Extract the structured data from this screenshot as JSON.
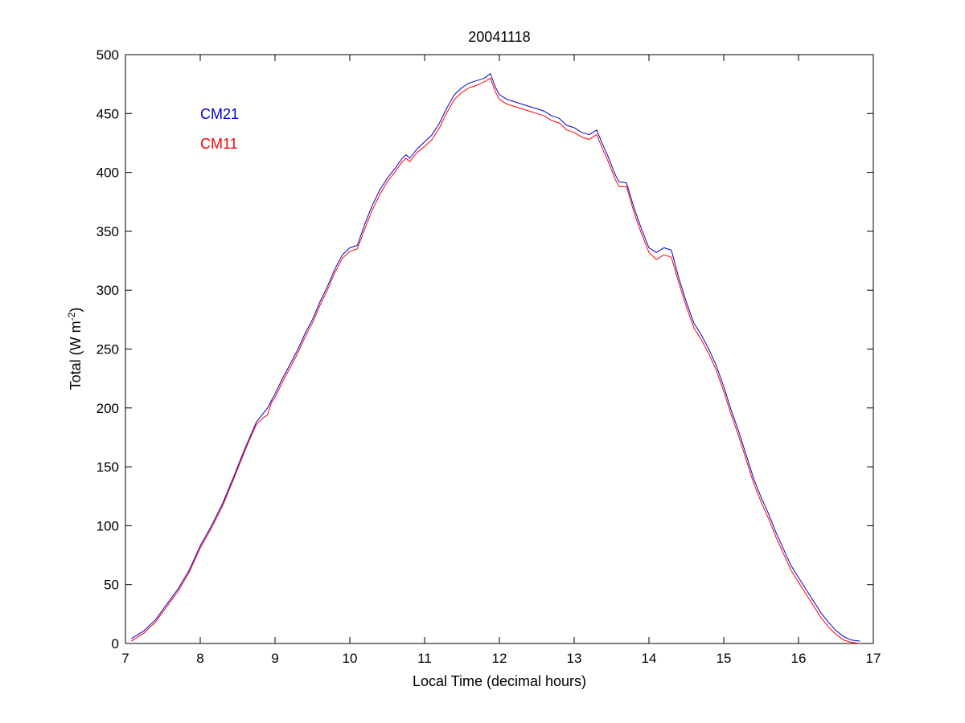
{
  "chart_data": {
    "type": "line",
    "title": "20041118",
    "xlabel": "Local Time (decimal hours)",
    "ylabel": {
      "main": "Total (W m",
      "sup": "-2",
      "close": ")"
    },
    "xlim": [
      7,
      17
    ],
    "ylim": [
      0,
      500
    ],
    "xticks": [
      7,
      8,
      9,
      10,
      11,
      12,
      13,
      14,
      15,
      16,
      17
    ],
    "yticks": [
      0,
      50,
      100,
      150,
      200,
      250,
      300,
      350,
      400,
      450,
      500
    ],
    "grid": false,
    "legend_position": "top-left",
    "series": [
      {
        "name": "CM21",
        "color": "#0000cc",
        "x": [
          7.08,
          7.25,
          7.4,
          7.55,
          7.7,
          7.85,
          8.0,
          8.15,
          8.3,
          8.45,
          8.6,
          8.75,
          8.85,
          8.9,
          8.95,
          9.0,
          9.1,
          9.2,
          9.3,
          9.4,
          9.5,
          9.6,
          9.7,
          9.8,
          9.9,
          10.0,
          10.1,
          10.2,
          10.3,
          10.4,
          10.5,
          10.6,
          10.7,
          10.75,
          10.8,
          10.9,
          11.0,
          11.1,
          11.2,
          11.3,
          11.4,
          11.5,
          11.6,
          11.7,
          11.8,
          11.88,
          11.95,
          12.0,
          12.1,
          12.2,
          12.3,
          12.4,
          12.5,
          12.6,
          12.7,
          12.8,
          12.9,
          13.0,
          13.1,
          13.2,
          13.3,
          13.38,
          13.45,
          13.55,
          13.6,
          13.7,
          13.8,
          13.9,
          14.0,
          14.1,
          14.2,
          14.3,
          14.4,
          14.5,
          14.6,
          14.7,
          14.8,
          14.9,
          15.0,
          15.1,
          15.2,
          15.3,
          15.4,
          15.5,
          15.6,
          15.7,
          15.8,
          15.9,
          16.0,
          16.1,
          16.2,
          16.3,
          16.4,
          16.5,
          16.6,
          16.7,
          16.82
        ],
        "y": [
          4,
          11,
          20,
          33,
          46,
          62,
          83,
          100,
          119,
          142,
          166,
          188,
          196,
          200,
          206,
          212,
          225,
          237,
          249,
          263,
          275,
          290,
          303,
          318,
          330,
          336,
          338,
          356,
          372,
          385,
          395,
          403,
          412,
          415,
          412,
          420,
          426,
          432,
          442,
          455,
          466,
          472,
          476,
          478,
          480,
          484,
          472,
          466,
          462,
          460,
          458,
          456,
          454,
          452,
          448,
          446,
          440,
          438,
          434,
          432,
          436,
          424,
          414,
          398,
          392,
          391,
          370,
          352,
          336,
          332,
          336,
          334,
          310,
          290,
          272,
          262,
          250,
          236,
          218,
          198,
          180,
          160,
          140,
          124,
          110,
          94,
          80,
          66,
          56,
          46,
          36,
          26,
          18,
          11,
          6,
          3,
          2
        ]
      },
      {
        "name": "CM11",
        "color": "#ff0000",
        "x": [
          7.08,
          7.25,
          7.4,
          7.55,
          7.7,
          7.85,
          8.0,
          8.15,
          8.3,
          8.45,
          8.6,
          8.75,
          8.85,
          8.9,
          8.95,
          9.0,
          9.1,
          9.2,
          9.3,
          9.4,
          9.5,
          9.6,
          9.7,
          9.8,
          9.9,
          10.0,
          10.1,
          10.2,
          10.3,
          10.4,
          10.5,
          10.6,
          10.7,
          10.75,
          10.8,
          10.9,
          11.0,
          11.1,
          11.2,
          11.3,
          11.4,
          11.5,
          11.6,
          11.7,
          11.8,
          11.88,
          11.95,
          12.0,
          12.1,
          12.2,
          12.3,
          12.4,
          12.5,
          12.6,
          12.7,
          12.8,
          12.9,
          13.0,
          13.1,
          13.2,
          13.3,
          13.38,
          13.45,
          13.55,
          13.6,
          13.7,
          13.8,
          13.9,
          14.0,
          14.1,
          14.2,
          14.3,
          14.4,
          14.5,
          14.6,
          14.7,
          14.8,
          14.9,
          15.0,
          15.1,
          15.2,
          15.3,
          15.4,
          15.5,
          15.6,
          15.7,
          15.8,
          15.9,
          16.0,
          16.1,
          16.2,
          16.3,
          16.4,
          16.5,
          16.6,
          16.7,
          16.82
        ],
        "y": [
          2,
          9,
          18,
          31,
          44,
          60,
          81,
          98,
          117,
          140,
          164,
          186,
          192,
          194,
          204,
          209,
          222,
          234,
          246,
          260,
          272,
          287,
          300,
          315,
          327,
          333,
          335,
          352,
          368,
          381,
          392,
          400,
          409,
          412,
          409,
          417,
          422,
          428,
          438,
          451,
          462,
          468,
          472,
          474,
          477,
          480,
          468,
          462,
          458,
          456,
          454,
          452,
          450,
          448,
          444,
          442,
          436,
          434,
          430,
          428,
          432,
          420,
          410,
          394,
          388,
          388,
          366,
          348,
          332,
          326,
          330,
          328,
          306,
          286,
          268,
          258,
          246,
          232,
          214,
          194,
          176,
          156,
          136,
          120,
          106,
          90,
          76,
          62,
          52,
          42,
          32,
          22,
          14,
          8,
          3,
          1,
          0
        ]
      }
    ]
  }
}
